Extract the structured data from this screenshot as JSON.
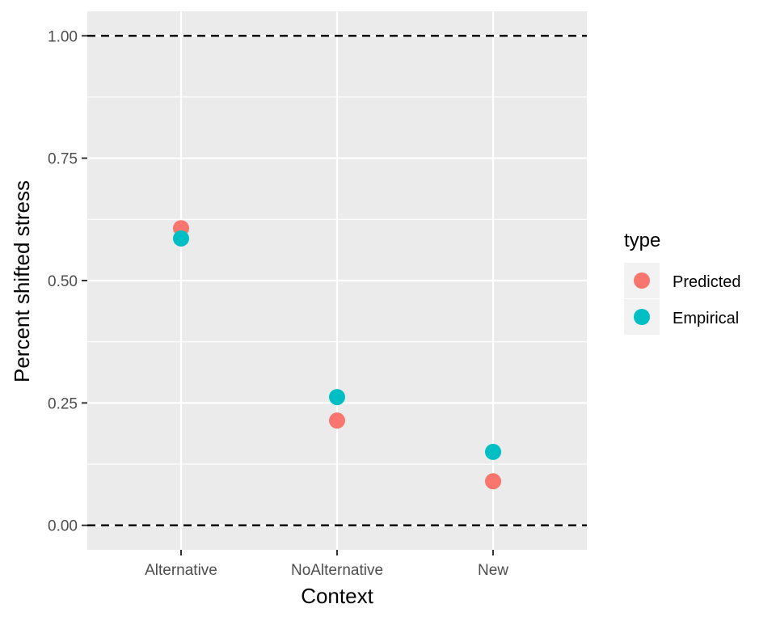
{
  "chart_data": {
    "type": "scatter",
    "title": "",
    "xlabel": "Context",
    "ylabel": "Percent shifted stress",
    "categories": [
      "Alternative",
      "NoAlternative",
      "New"
    ],
    "ylim": [
      -0.05,
      1.05
    ],
    "yticks": [
      0.0,
      0.25,
      0.5,
      0.75,
      1.0
    ],
    "ytick_labels": [
      "0.00",
      "0.25",
      "0.50",
      "0.75",
      "1.00"
    ],
    "reference_lines": [
      0.0,
      1.0
    ],
    "grid": true,
    "legend": {
      "title": "type",
      "position": "right"
    },
    "series": [
      {
        "name": "Predicted",
        "color": "#F8766D",
        "values": [
          0.607,
          0.214,
          0.09
        ]
      },
      {
        "name": "Empirical",
        "color": "#00BFC4",
        "values": [
          0.586,
          0.262,
          0.15
        ]
      }
    ]
  }
}
